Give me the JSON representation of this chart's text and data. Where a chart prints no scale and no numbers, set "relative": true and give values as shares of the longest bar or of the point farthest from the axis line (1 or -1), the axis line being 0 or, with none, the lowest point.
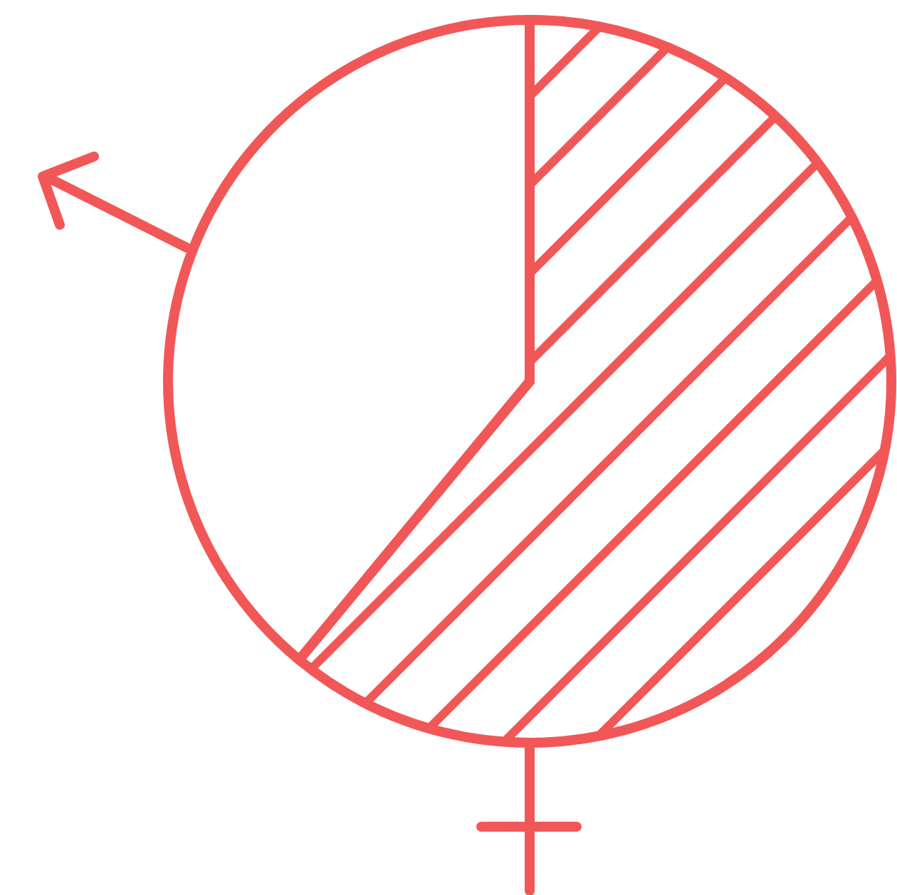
{
  "chart_data": {
    "type": "pie",
    "relative": true,
    "categories": [
      null,
      null
    ],
    "values": [
      61,
      39
    ],
    "colors": [
      "#f25757",
      "#ffffff"
    ]
  }
}
